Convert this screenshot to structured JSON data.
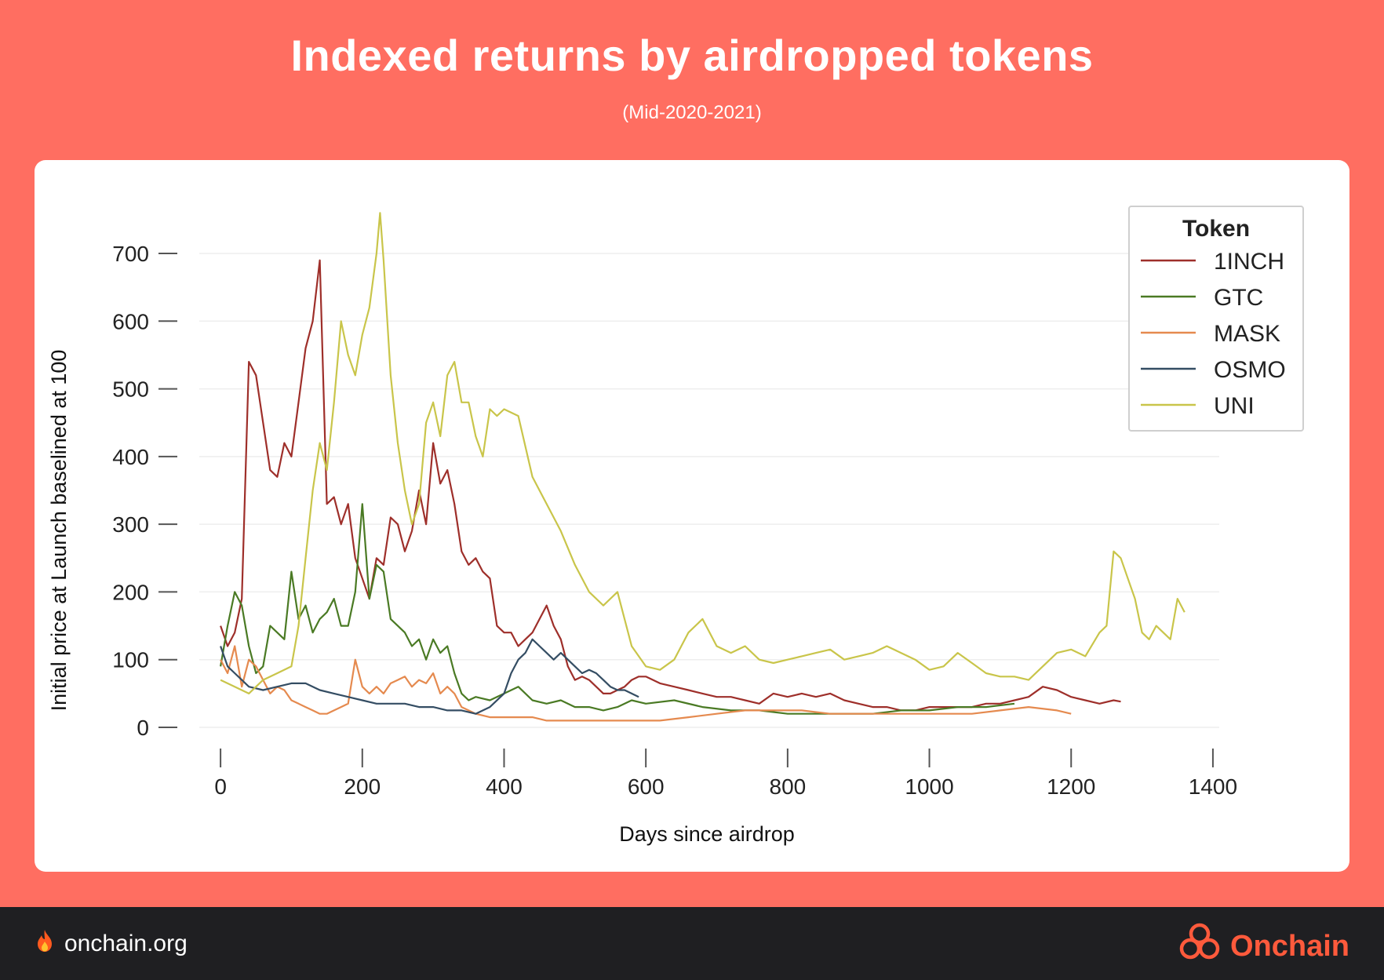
{
  "header": {
    "title": "Indexed returns by airdropped tokens",
    "subtitle": "(Mid-2020-2021)"
  },
  "footer": {
    "site": "onchain.org",
    "brand": "Onchain",
    "fire_icon": "fire-icon",
    "logo_icon": "onchain-logo-icon"
  },
  "colors": {
    "background": "#ff6e61",
    "card": "#ffffff",
    "footer": "#1f1f22",
    "brand": "#ff5a3c"
  },
  "chart_data": {
    "type": "line",
    "xlabel": "Days since airdrop",
    "ylabel": "Initial  price at Launch baselined at 100",
    "xlim": [
      -30,
      1420
    ],
    "ylim": [
      0,
      780
    ],
    "xticks": [
      0,
      200,
      400,
      600,
      800,
      1000,
      1200,
      1400
    ],
    "yticks": [
      0,
      100,
      200,
      300,
      400,
      500,
      600,
      700
    ],
    "legend": {
      "title": "Token",
      "position": "top-right"
    },
    "series": [
      {
        "name": "1INCH",
        "color": "#9e2f2a",
        "x": [
          0,
          10,
          20,
          30,
          40,
          50,
          60,
          70,
          80,
          90,
          100,
          110,
          120,
          130,
          140,
          150,
          160,
          170,
          180,
          190,
          200,
          210,
          220,
          230,
          240,
          250,
          260,
          270,
          280,
          290,
          300,
          310,
          320,
          330,
          340,
          350,
          360,
          370,
          380,
          390,
          400,
          410,
          420,
          430,
          440,
          450,
          460,
          470,
          480,
          490,
          500,
          510,
          520,
          530,
          540,
          550,
          560,
          570,
          580,
          590,
          600,
          620,
          640,
          660,
          680,
          700,
          720,
          740,
          760,
          780,
          800,
          820,
          840,
          860,
          880,
          900,
          920,
          940,
          960,
          980,
          1000,
          1020,
          1040,
          1060,
          1080,
          1100,
          1120,
          1140,
          1160,
          1180,
          1200,
          1220,
          1240,
          1260,
          1270
        ],
        "y": [
          150,
          120,
          140,
          190,
          540,
          520,
          450,
          380,
          370,
          420,
          400,
          480,
          560,
          600,
          690,
          330,
          340,
          300,
          330,
          250,
          220,
          190,
          250,
          240,
          310,
          300,
          260,
          290,
          350,
          300,
          420,
          360,
          380,
          330,
          260,
          240,
          250,
          230,
          220,
          150,
          140,
          140,
          120,
          130,
          140,
          160,
          180,
          150,
          130,
          90,
          70,
          75,
          70,
          60,
          50,
          50,
          55,
          60,
          70,
          75,
          75,
          65,
          60,
          55,
          50,
          45,
          45,
          40,
          35,
          50,
          45,
          50,
          45,
          50,
          40,
          35,
          30,
          30,
          25,
          25,
          30,
          30,
          30,
          30,
          35,
          35,
          40,
          45,
          60,
          55,
          45,
          40,
          35,
          40,
          38
        ]
      },
      {
        "name": "GTC",
        "color": "#4a7a24",
        "x": [
          0,
          10,
          20,
          30,
          40,
          50,
          60,
          70,
          80,
          90,
          100,
          110,
          120,
          130,
          140,
          150,
          160,
          170,
          180,
          190,
          200,
          210,
          220,
          230,
          240,
          250,
          260,
          270,
          280,
          290,
          300,
          310,
          320,
          330,
          340,
          350,
          360,
          380,
          400,
          420,
          440,
          460,
          480,
          500,
          520,
          540,
          560,
          580,
          600,
          640,
          680,
          720,
          760,
          800,
          840,
          880,
          920,
          960,
          1000,
          1040,
          1080,
          1120
        ],
        "y": [
          90,
          150,
          200,
          180,
          120,
          80,
          90,
          150,
          140,
          130,
          230,
          160,
          180,
          140,
          160,
          170,
          190,
          150,
          150,
          200,
          330,
          190,
          240,
          230,
          160,
          150,
          140,
          120,
          130,
          100,
          130,
          110,
          120,
          80,
          50,
          40,
          45,
          40,
          50,
          60,
          40,
          35,
          40,
          30,
          30,
          25,
          30,
          40,
          35,
          40,
          30,
          25,
          25,
          20,
          20,
          20,
          20,
          25,
          25,
          30,
          30,
          35
        ]
      },
      {
        "name": "MASK",
        "color": "#e58a4f",
        "x": [
          0,
          10,
          20,
          30,
          40,
          50,
          60,
          70,
          80,
          90,
          100,
          110,
          120,
          130,
          140,
          150,
          160,
          170,
          180,
          190,
          200,
          210,
          220,
          230,
          240,
          250,
          260,
          270,
          280,
          290,
          300,
          310,
          320,
          330,
          340,
          350,
          360,
          380,
          400,
          420,
          440,
          460,
          480,
          500,
          540,
          580,
          620,
          660,
          700,
          740,
          780,
          820,
          860,
          900,
          940,
          980,
          1020,
          1060,
          1100,
          1140,
          1180,
          1200
        ],
        "y": [
          100,
          80,
          120,
          60,
          100,
          90,
          70,
          50,
          60,
          55,
          40,
          35,
          30,
          25,
          20,
          20,
          25,
          30,
          35,
          100,
          60,
          50,
          60,
          50,
          65,
          70,
          75,
          60,
          70,
          65,
          80,
          50,
          60,
          50,
          30,
          25,
          20,
          15,
          15,
          15,
          15,
          10,
          10,
          10,
          10,
          10,
          10,
          15,
          20,
          25,
          25,
          25,
          20,
          20,
          20,
          20,
          20,
          20,
          25,
          30,
          25,
          20
        ]
      },
      {
        "name": "OSMO",
        "color": "#344d63",
        "x": [
          0,
          10,
          20,
          30,
          40,
          60,
          80,
          100,
          120,
          140,
          160,
          180,
          200,
          220,
          240,
          260,
          280,
          300,
          320,
          340,
          360,
          380,
          400,
          410,
          420,
          430,
          440,
          450,
          460,
          470,
          480,
          490,
          500,
          510,
          520,
          530,
          540,
          550,
          560,
          570,
          580,
          590
        ],
        "y": [
          120,
          90,
          80,
          70,
          60,
          55,
          60,
          65,
          65,
          55,
          50,
          45,
          40,
          35,
          35,
          35,
          30,
          30,
          25,
          25,
          20,
          30,
          50,
          80,
          100,
          110,
          130,
          120,
          110,
          100,
          110,
          100,
          90,
          80,
          85,
          80,
          70,
          60,
          55,
          55,
          50,
          45
        ]
      },
      {
        "name": "UNI",
        "color": "#c9c54a",
        "x": [
          0,
          20,
          40,
          60,
          80,
          100,
          110,
          120,
          130,
          140,
          150,
          160,
          170,
          180,
          190,
          200,
          210,
          220,
          225,
          230,
          240,
          250,
          260,
          270,
          280,
          290,
          300,
          310,
          320,
          330,
          340,
          350,
          360,
          370,
          380,
          390,
          400,
          420,
          440,
          460,
          480,
          500,
          520,
          540,
          560,
          580,
          600,
          620,
          640,
          660,
          680,
          700,
          720,
          740,
          760,
          780,
          800,
          820,
          840,
          860,
          880,
          900,
          920,
          940,
          960,
          980,
          1000,
          1020,
          1040,
          1060,
          1080,
          1100,
          1120,
          1140,
          1160,
          1180,
          1200,
          1220,
          1240,
          1250,
          1260,
          1270,
          1280,
          1290,
          1300,
          1310,
          1320,
          1330,
          1340,
          1350,
          1360
        ],
        "y": [
          70,
          60,
          50,
          70,
          80,
          90,
          150,
          250,
          350,
          420,
          380,
          480,
          600,
          550,
          520,
          580,
          620,
          700,
          760,
          690,
          520,
          420,
          350,
          300,
          330,
          450,
          480,
          430,
          520,
          540,
          480,
          480,
          430,
          400,
          470,
          460,
          470,
          460,
          370,
          330,
          290,
          240,
          200,
          180,
          200,
          120,
          90,
          85,
          100,
          140,
          160,
          120,
          110,
          120,
          100,
          95,
          100,
          105,
          110,
          115,
          100,
          105,
          110,
          120,
          110,
          100,
          85,
          90,
          110,
          95,
          80,
          75,
          75,
          70,
          90,
          110,
          115,
          105,
          140,
          150,
          260,
          250,
          220,
          190,
          140,
          130,
          150,
          140,
          130,
          190,
          170
        ]
      }
    ]
  }
}
